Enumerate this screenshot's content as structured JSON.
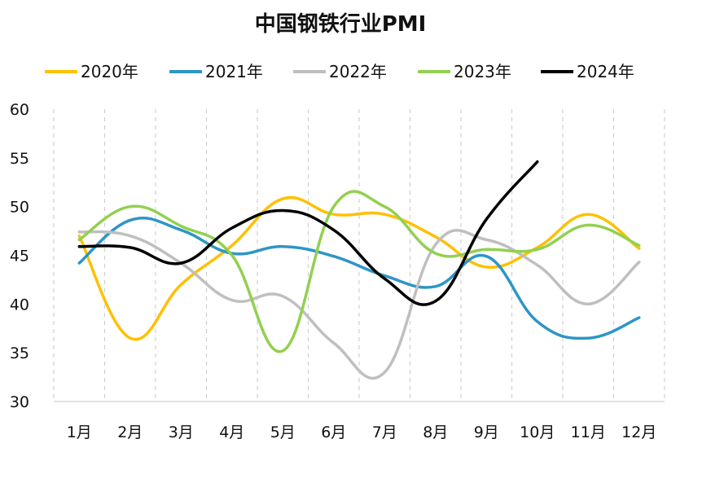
{
  "chart_data": {
    "type": "line",
    "title": "中国钢铁行业PMI",
    "xlabel": "",
    "ylabel": "",
    "ylim": [
      30,
      60
    ],
    "yticks": [
      "30",
      "35",
      "40",
      "45",
      "50",
      "55",
      "60"
    ],
    "categories": [
      "1月",
      "2月",
      "3月",
      "4月",
      "5月",
      "6月",
      "7月",
      "8月",
      "9月",
      "10月",
      "11月",
      "12月"
    ],
    "grid": "vertical dashed",
    "legend_position": "top",
    "series": [
      {
        "name": "2020年",
        "color": "#FFC000",
        "values": [
          47.0,
          36.5,
          42.0,
          46.0,
          50.8,
          49.2,
          49.2,
          46.9,
          43.8,
          45.8,
          49.2,
          45.7
        ]
      },
      {
        "name": "2021年",
        "color": "#2E95C6",
        "values": [
          44.2,
          48.6,
          47.6,
          45.2,
          45.9,
          44.9,
          42.9,
          41.8,
          44.9,
          38.2,
          36.5,
          38.6
        ]
      },
      {
        "name": "2022年",
        "color": "#BFBFBF",
        "values": [
          47.4,
          47.0,
          44.2,
          40.4,
          40.8,
          36.0,
          33.0,
          46.1,
          46.6,
          44.0,
          40.0,
          44.3
        ]
      },
      {
        "name": "2023年",
        "color": "#92D050",
        "values": [
          46.6,
          50.0,
          48.0,
          45.0,
          35.2,
          50.0,
          50.0,
          45.2,
          45.6,
          45.6,
          48.1,
          46.0
        ]
      },
      {
        "name": "2024年",
        "color": "#000000",
        "values": [
          45.9,
          45.8,
          44.2,
          47.8,
          49.6,
          47.6,
          42.6,
          40.3,
          48.7,
          54.6,
          null,
          null
        ]
      }
    ]
  }
}
